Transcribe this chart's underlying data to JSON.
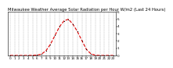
{
  "title": "Milwaukee Weather Average Solar Radiation per Hour W/m2 (Last 24 Hours)",
  "hours": [
    0,
    1,
    2,
    3,
    4,
    5,
    6,
    7,
    8,
    9,
    10,
    11,
    12,
    13,
    14,
    15,
    16,
    17,
    18,
    19,
    20,
    21,
    22,
    23
  ],
  "values": [
    0,
    0,
    0,
    0,
    0,
    2,
    5,
    18,
    65,
    155,
    275,
    395,
    475,
    500,
    430,
    330,
    205,
    85,
    22,
    4,
    0,
    0,
    0,
    0
  ],
  "line_color": "#dd0000",
  "bg_color": "#ffffff",
  "grid_color": "#999999",
  "title_color": "#000000",
  "ylim": [
    0,
    600
  ],
  "ytick_vals": [
    0,
    100,
    200,
    300,
    400,
    500,
    600
  ],
  "ytick_labels": [
    "0",
    "1",
    "2",
    "3",
    "4",
    "5",
    "6"
  ],
  "title_fontsize": 3.8,
  "axis_fontsize": 3.0,
  "line_width": 0.8,
  "marker_size": 1.0
}
